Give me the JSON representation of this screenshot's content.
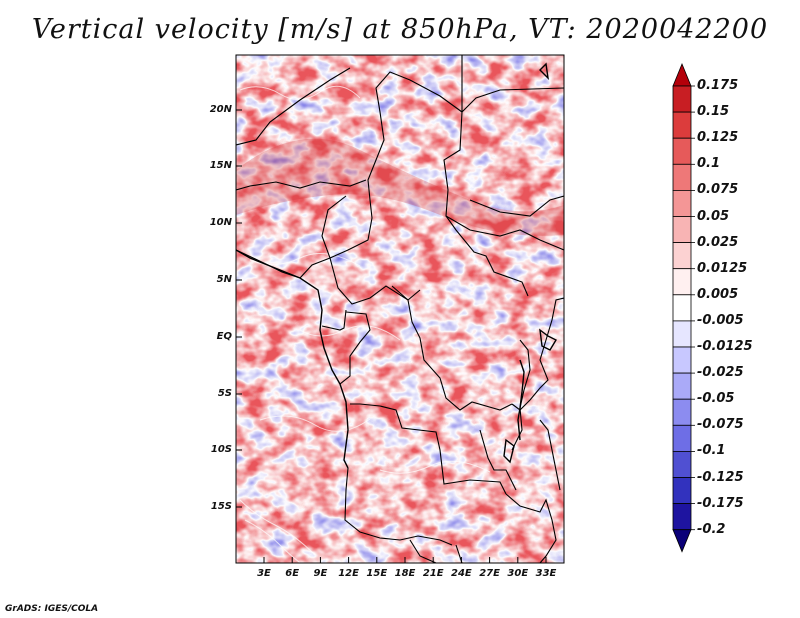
{
  "title": "Vertical velocity [m/s] at 850hPa, VT: 2020042200",
  "credit": "GrADS: IGES/COLA",
  "map": {
    "lat_labels": [
      "20N",
      "15N",
      "10N",
      "5N",
      "EQ",
      "5S",
      "10S",
      "15S"
    ],
    "lon_labels": [
      "3E",
      "6E",
      "9E",
      "12E",
      "15E",
      "18E",
      "21E",
      "24E",
      "27E",
      "30E",
      "33E"
    ]
  },
  "colorbar": {
    "labels": [
      "0.175",
      "0.15",
      "0.125",
      "0.1",
      "0.075",
      "0.05",
      "0.025",
      "0.0125",
      "0.005",
      "-0.005",
      "-0.0125",
      "-0.025",
      "-0.05",
      "-0.075",
      "-0.1",
      "-0.125",
      "-0.175",
      "-0.2"
    ],
    "colors": [
      "#b4000a",
      "#c81e23",
      "#dc3c3c",
      "#e65a5a",
      "#ee7878",
      "#f49696",
      "#f8b4b4",
      "#fcd2d2",
      "#fff0f0",
      "#ffffff",
      "#e6e6ff",
      "#c8c8ff",
      "#aaaaf8",
      "#8c8cf0",
      "#6e6ee6",
      "#5050d2",
      "#3232be",
      "#1e14a0",
      "#0a0078"
    ]
  }
}
